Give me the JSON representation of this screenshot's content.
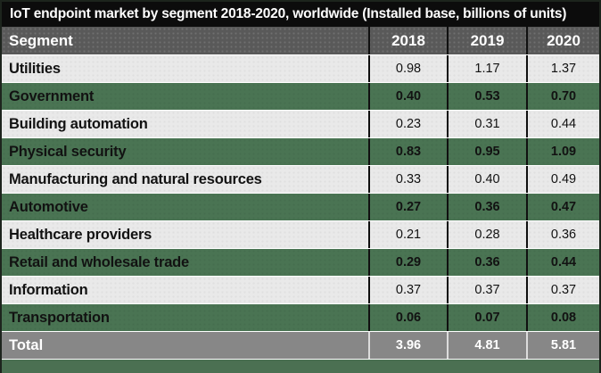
{
  "title": "IoT endpoint market by segment 2018-2020, worldwide (Installed base, billions of units)",
  "table": {
    "columns": [
      "Segment",
      "2018",
      "2019",
      "2020"
    ],
    "rows": [
      {
        "segment": "Utilities",
        "values": [
          "0.98",
          "1.17",
          "1.37"
        ]
      },
      {
        "segment": "Government",
        "values": [
          "0.40",
          "0.53",
          "0.70"
        ]
      },
      {
        "segment": "Building automation",
        "values": [
          "0.23",
          "0.31",
          "0.44"
        ]
      },
      {
        "segment": "Physical security",
        "values": [
          "0.83",
          "0.95",
          "1.09"
        ]
      },
      {
        "segment": "Manufacturing and natural resources",
        "values": [
          "0.33",
          "0.40",
          "0.49"
        ]
      },
      {
        "segment": "Automotive",
        "values": [
          "0.27",
          "0.36",
          "0.47"
        ]
      },
      {
        "segment": "Healthcare providers",
        "values": [
          "0.21",
          "0.28",
          "0.36"
        ]
      },
      {
        "segment": "Retail and wholesale trade",
        "values": [
          "0.29",
          "0.36",
          "0.44"
        ]
      },
      {
        "segment": "Information",
        "values": [
          "0.37",
          "0.37",
          "0.37"
        ]
      },
      {
        "segment": "Transportation",
        "values": [
          "0.06",
          "0.07",
          "0.08"
        ]
      }
    ],
    "total": {
      "segment": "Total",
      "values": [
        "3.96",
        "4.81",
        "5.81"
      ]
    }
  },
  "colors": {
    "title_bg": "#0c0c0c",
    "header_bg": "#595959",
    "row_light_bg": "#e9e9e9",
    "row_green_bg": "#4a7453",
    "total_bg": "#878787",
    "bottom_bar_bg": "#4b7052",
    "text_dark": "#121212",
    "text_light": "#ffffff"
  },
  "chart_data": {
    "type": "table",
    "title": "IoT endpoint market by segment 2018-2020, worldwide (Installed base, billions of units)",
    "columns": [
      "Segment",
      "2018",
      "2019",
      "2020"
    ],
    "rows": [
      [
        "Utilities",
        0.98,
        1.17,
        1.37
      ],
      [
        "Government",
        0.4,
        0.53,
        0.7
      ],
      [
        "Building automation",
        0.23,
        0.31,
        0.44
      ],
      [
        "Physical security",
        0.83,
        0.95,
        1.09
      ],
      [
        "Manufacturing and natural resources",
        0.33,
        0.4,
        0.49
      ],
      [
        "Automotive",
        0.27,
        0.36,
        0.47
      ],
      [
        "Healthcare providers",
        0.21,
        0.28,
        0.36
      ],
      [
        "Retail and wholesale trade",
        0.29,
        0.36,
        0.44
      ],
      [
        "Information",
        0.37,
        0.37,
        0.37
      ],
      [
        "Transportation",
        0.06,
        0.07,
        0.08
      ]
    ],
    "total": [
      "Total",
      3.96,
      4.81,
      5.81
    ],
    "units": "billions of units (installed base)"
  }
}
